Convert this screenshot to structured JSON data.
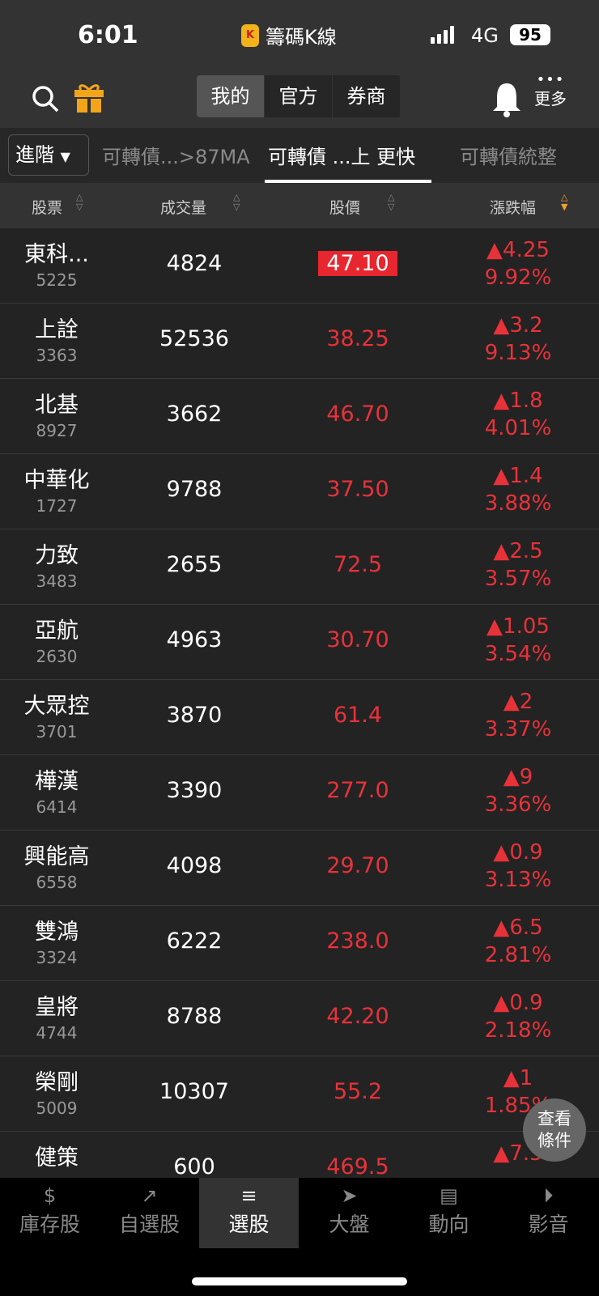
{
  "status": {
    "time": "6:01",
    "app": "籌碼K線",
    "network": "4G",
    "battery": "95"
  },
  "topbar": {
    "segments": [
      "我的",
      "官方",
      "券商"
    ],
    "active": 0,
    "more": "更多"
  },
  "tabs": {
    "advanced": "進階",
    "items": [
      "可轉債...>87MA",
      "可轉債 ...上 更快",
      "可轉債統整"
    ],
    "active": 1
  },
  "columns": [
    "股票",
    "成交量",
    "股價",
    "漲跌幅"
  ],
  "colors": {
    "up": "#e8323a",
    "sort_active": "#f0a030",
    "accent": "#f2a51a"
  },
  "rows": [
    {
      "name": "東科...",
      "code": "5225",
      "volume": "4824",
      "price": "47.10",
      "change": "▲4.25",
      "pct": "9.92%",
      "highlight": true
    },
    {
      "name": "上詮",
      "code": "3363",
      "volume": "52536",
      "price": "38.25",
      "change": "▲3.2",
      "pct": "9.13%"
    },
    {
      "name": "北基",
      "code": "8927",
      "volume": "3662",
      "price": "46.70",
      "change": "▲1.8",
      "pct": "4.01%"
    },
    {
      "name": "中華化",
      "code": "1727",
      "volume": "9788",
      "price": "37.50",
      "change": "▲1.4",
      "pct": "3.88%"
    },
    {
      "name": "力致",
      "code": "3483",
      "volume": "2655",
      "price": "72.5",
      "change": "▲2.5",
      "pct": "3.57%"
    },
    {
      "name": "亞航",
      "code": "2630",
      "volume": "4963",
      "price": "30.70",
      "change": "▲1.05",
      "pct": "3.54%"
    },
    {
      "name": "大眾控",
      "code": "3701",
      "volume": "3870",
      "price": "61.4",
      "change": "▲2",
      "pct": "3.37%"
    },
    {
      "name": "樺漢",
      "code": "6414",
      "volume": "3390",
      "price": "277.0",
      "change": "▲9",
      "pct": "3.36%"
    },
    {
      "name": "興能高",
      "code": "6558",
      "volume": "4098",
      "price": "29.70",
      "change": "▲0.9",
      "pct": "3.13%"
    },
    {
      "name": "雙鴻",
      "code": "3324",
      "volume": "6222",
      "price": "238.0",
      "change": "▲6.5",
      "pct": "2.81%"
    },
    {
      "name": "皇將",
      "code": "4744",
      "volume": "8788",
      "price": "42.20",
      "change": "▲0.9",
      "pct": "2.18%"
    },
    {
      "name": "榮剛",
      "code": "5009",
      "volume": "10307",
      "price": "55.2",
      "change": "▲1",
      "pct": "1.85%"
    },
    {
      "name": "健策",
      "code": "",
      "volume": "600",
      "price": "469.5",
      "change": "▲7.5",
      "pct": ""
    }
  ],
  "fab": {
    "line1": "查看",
    "line2": "條件"
  },
  "nav": [
    {
      "label": "庫存股",
      "icon": "money-hand-icon"
    },
    {
      "label": "自選股",
      "icon": "chart-line-icon"
    },
    {
      "label": "選股",
      "icon": "database-icon"
    },
    {
      "label": "大盤",
      "icon": "location-arrow-icon"
    },
    {
      "label": "動向",
      "icon": "news-icon"
    },
    {
      "label": "影音",
      "icon": "play-circle-icon"
    }
  ],
  "nav_active": 2
}
